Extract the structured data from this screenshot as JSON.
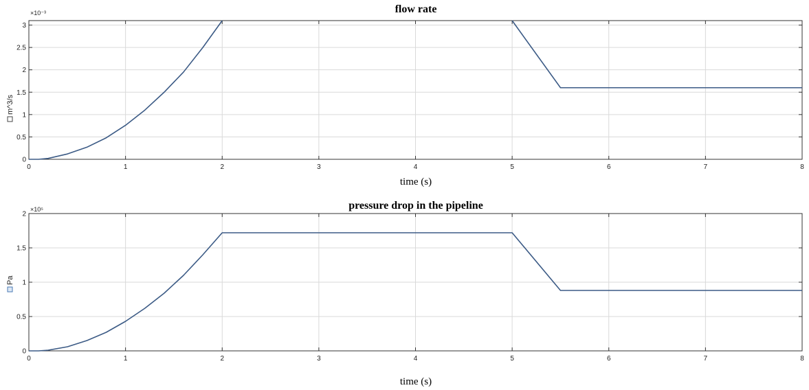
{
  "chart_data": [
    {
      "type": "line",
      "title": "flow rate",
      "xlabel": "time (s)",
      "ylabel": "m^3/s",
      "exponent": "×10⁻³",
      "xlim": [
        0,
        8
      ],
      "ylim": [
        0,
        3.1
      ],
      "xticks": [
        0,
        1,
        2,
        3,
        4,
        5,
        6,
        7,
        8
      ],
      "yticks": [
        0,
        0.5,
        1,
        1.5,
        2,
        2.5,
        3
      ],
      "ytick_labels": [
        "0",
        "0.5",
        "1",
        "1.5",
        "2",
        "2.5",
        "3"
      ],
      "grid": true,
      "line_color": "#3b5a85",
      "series": [
        {
          "x": [
            0,
            0.1,
            0.2,
            0.4,
            0.6,
            0.8,
            1.0,
            1.2,
            1.4,
            1.6,
            1.8,
            2.0,
            2.0001,
            5.0,
            5.5,
            8.0
          ],
          "y": [
            0,
            0,
            0.02,
            0.12,
            0.27,
            0.48,
            0.76,
            1.1,
            1.5,
            1.95,
            2.5,
            3.1,
            null,
            3.1,
            1.6,
            1.6
          ]
        }
      ]
    },
    {
      "type": "line",
      "title": "pressure drop in the pipeline",
      "xlabel": "time (s)",
      "ylabel": "Pa",
      "exponent": "×10⁵",
      "xlim": [
        0,
        8
      ],
      "ylim": [
        0,
        2
      ],
      "xticks": [
        0,
        1,
        2,
        3,
        4,
        5,
        6,
        7,
        8
      ],
      "yticks": [
        0,
        0.5,
        1,
        1.5,
        2
      ],
      "ytick_labels": [
        "0",
        "0.5",
        "1",
        "1.5",
        "2"
      ],
      "grid": true,
      "line_color": "#3b5a85",
      "series": [
        {
          "x": [
            0,
            0.1,
            0.2,
            0.4,
            0.6,
            0.8,
            1.0,
            1.2,
            1.4,
            1.6,
            1.8,
            2.0,
            5.0,
            5.5,
            8.0
          ],
          "y": [
            0,
            0,
            0.01,
            0.06,
            0.15,
            0.27,
            0.43,
            0.62,
            0.84,
            1.1,
            1.4,
            1.72,
            1.72,
            0.88,
            0.88
          ]
        }
      ]
    }
  ]
}
